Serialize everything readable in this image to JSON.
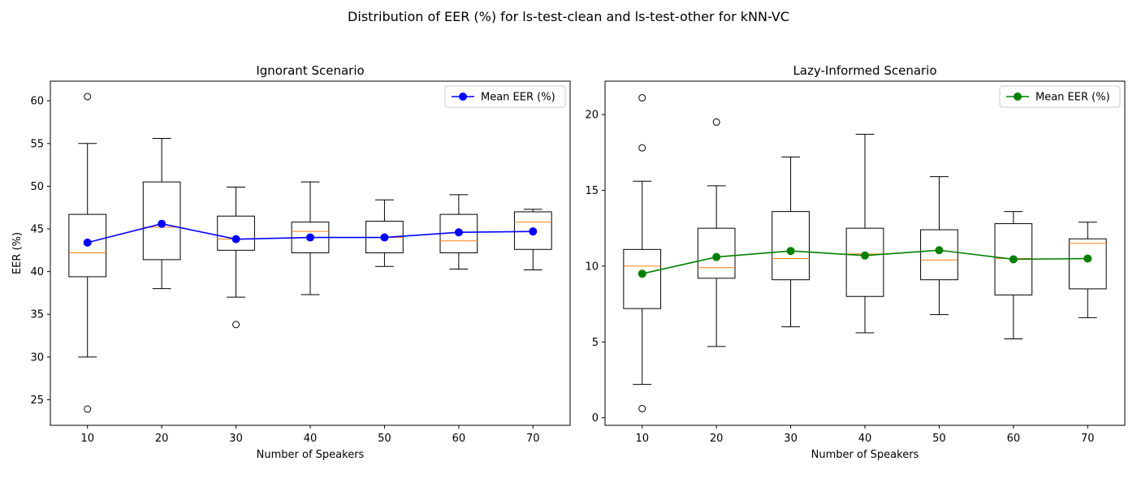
{
  "figure": {
    "suptitle": "Distribution of EER (%) for ls-test-clean and ls-test-other for kNN-VC"
  },
  "chart_data": [
    {
      "type": "box",
      "title": "Ignorant Scenario",
      "xlabel": "Number of Speakers",
      "ylabel": "EER (%)",
      "categories": [
        "10",
        "20",
        "30",
        "40",
        "50",
        "60",
        "70"
      ],
      "ylim": [
        22,
        62.3
      ],
      "yticks": [
        25,
        30,
        35,
        40,
        45,
        50,
        55,
        60
      ],
      "grid": false,
      "legend_position": "top-right",
      "mean_color": "#0000ff",
      "boxes": [
        {
          "whislo": 30.0,
          "q1": 39.4,
          "med": 42.2,
          "q3": 46.7,
          "whishi": 55.0,
          "fliers": [
            60.5,
            23.9
          ]
        },
        {
          "whislo": 38.0,
          "q1": 41.4,
          "med": 45.2,
          "q3": 50.5,
          "whishi": 55.6,
          "fliers": []
        },
        {
          "whislo": 37.0,
          "q1": 42.5,
          "med": 43.8,
          "q3": 46.5,
          "whishi": 49.9,
          "fliers": [
            33.8
          ]
        },
        {
          "whislo": 37.3,
          "q1": 42.2,
          "med": 44.7,
          "q3": 45.8,
          "whishi": 50.5,
          "fliers": []
        },
        {
          "whislo": 40.6,
          "q1": 42.2,
          "med": 44.0,
          "q3": 45.9,
          "whishi": 48.4,
          "fliers": []
        },
        {
          "whislo": 40.3,
          "q1": 42.2,
          "med": 43.6,
          "q3": 46.7,
          "whishi": 49.0,
          "fliers": []
        },
        {
          "whislo": 40.2,
          "q1": 42.6,
          "med": 45.8,
          "q3": 47.0,
          "whishi": 47.3,
          "fliers": []
        }
      ],
      "series": [
        {
          "name": "Mean EER (%)",
          "values": [
            43.4,
            45.6,
            43.8,
            44.0,
            44.0,
            44.6,
            44.7
          ]
        }
      ]
    },
    {
      "type": "box",
      "title": "Lazy-Informed Scenario",
      "xlabel": "Number of Speakers",
      "ylabel": "",
      "categories": [
        "10",
        "20",
        "30",
        "40",
        "50",
        "60",
        "70"
      ],
      "ylim": [
        -0.5,
        22.2
      ],
      "yticks": [
        0,
        5,
        10,
        15,
        20
      ],
      "grid": false,
      "legend_position": "top-right",
      "mean_color": "#008000",
      "boxes": [
        {
          "whislo": 2.2,
          "q1": 7.2,
          "med": 10.0,
          "q3": 11.1,
          "whishi": 15.6,
          "fliers": [
            21.1,
            17.8,
            0.6
          ]
        },
        {
          "whislo": 4.7,
          "q1": 9.2,
          "med": 9.9,
          "q3": 12.5,
          "whishi": 15.3,
          "fliers": [
            19.5
          ]
        },
        {
          "whislo": 6.0,
          "q1": 9.1,
          "med": 10.5,
          "q3": 13.6,
          "whishi": 17.2,
          "fliers": []
        },
        {
          "whislo": 5.6,
          "q1": 8.0,
          "med": 10.8,
          "q3": 12.5,
          "whishi": 18.7,
          "fliers": []
        },
        {
          "whislo": 6.8,
          "q1": 9.1,
          "med": 10.4,
          "q3": 12.4,
          "whishi": 15.9,
          "fliers": []
        },
        {
          "whislo": 5.2,
          "q1": 8.1,
          "med": 10.5,
          "q3": 12.8,
          "whishi": 13.6,
          "fliers": []
        },
        {
          "whislo": 6.6,
          "q1": 8.5,
          "med": 11.5,
          "q3": 11.8,
          "whishi": 12.9,
          "fliers": []
        }
      ],
      "series": [
        {
          "name": "Mean EER (%)",
          "values": [
            9.5,
            10.6,
            11.0,
            10.7,
            11.05,
            10.45,
            10.5
          ]
        }
      ]
    }
  ]
}
